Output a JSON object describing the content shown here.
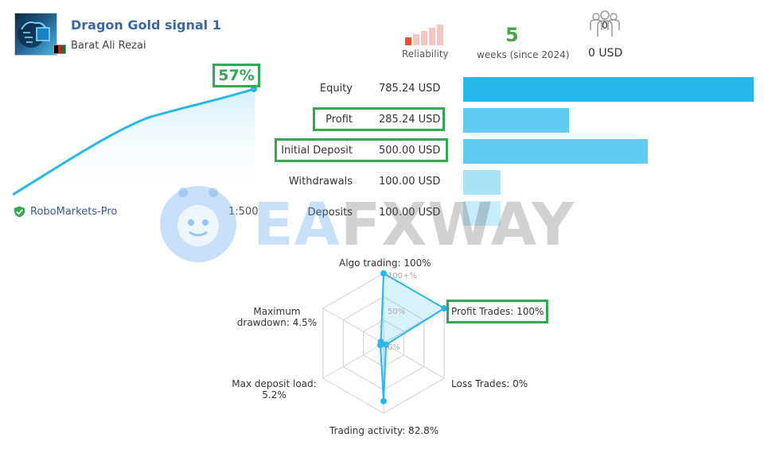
{
  "header": {
    "title": "Dragon Gold signal 1",
    "author": "Barat Ali Rezai",
    "reliability_label": "Reliability",
    "weeks_value": "5",
    "weeks_label": "weeks (since 2024)",
    "subscribers_count": "0",
    "subscribers_funds": "0 USD"
  },
  "growth": {
    "value": "57%",
    "broker": "RoboMarkets-Pro",
    "leverage": "1:500"
  },
  "balances": [
    {
      "label": "Equity",
      "value": "785.24 USD",
      "amount": 785.24
    },
    {
      "label": "Profit",
      "value": "285.24 USD",
      "amount": 285.24
    },
    {
      "label": "Initial Deposit",
      "value": "500.00 USD",
      "amount": 500.0
    },
    {
      "label": "Withdrawals",
      "value": "100.00 USD",
      "amount": 100.0
    },
    {
      "label": "Deposits",
      "value": "100.00 USD",
      "amount": 100.0
    }
  ],
  "radar": {
    "algo": "Algo trading: 100%",
    "profit_trades": "Profit Trades: 100%",
    "loss_trades": "Loss Trades: 0%",
    "activity": "Trading activity: 82.8%",
    "deposit_load_1": "Max deposit load:",
    "deposit_load_2": "5.2%",
    "drawdown_1": "Maximum",
    "drawdown_2": "drawdown: 4.5%",
    "tick_100": "100+%",
    "tick_50": "50%",
    "tick_0": "0%",
    "values": [
      100,
      100,
      0,
      82.8,
      5.2,
      4.5
    ]
  },
  "watermark": {
    "part1": "EA",
    "part2": "FXWAY"
  },
  "colors": {
    "accent_blue": "#29b6ea",
    "highlight_green": "#32a852"
  }
}
